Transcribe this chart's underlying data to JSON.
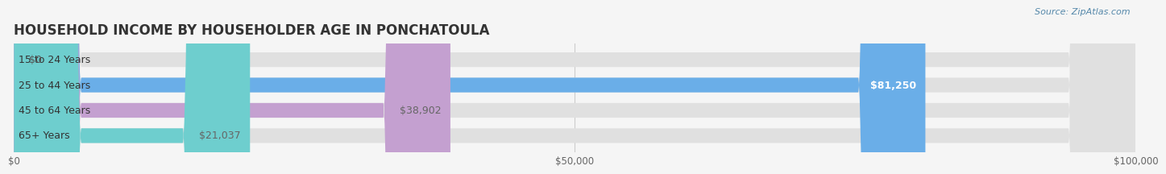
{
  "title": "HOUSEHOLD INCOME BY HOUSEHOLDER AGE IN PONCHATOULA",
  "source": "Source: ZipAtlas.com",
  "categories": [
    "15 to 24 Years",
    "25 to 44 Years",
    "45 to 64 Years",
    "65+ Years"
  ],
  "values": [
    0,
    81250,
    38902,
    21037
  ],
  "bar_colors": [
    "#f4a0a0",
    "#6aaee8",
    "#c4a0d0",
    "#6ecece"
  ],
  "label_colors": [
    "#666666",
    "#ffffff",
    "#666666",
    "#666666"
  ],
  "value_labels": [
    "$0",
    "$81,250",
    "$38,902",
    "$21,037"
  ],
  "xlim": [
    0,
    100000
  ],
  "xticks": [
    0,
    50000,
    100000
  ],
  "xtick_labels": [
    "$0",
    "$50,000",
    "$100,000"
  ],
  "bg_color": "#f5f5f5",
  "bar_bg_color": "#e0e0e0",
  "title_fontsize": 12,
  "label_fontsize": 9,
  "value_fontsize": 9,
  "bar_height": 0.58
}
